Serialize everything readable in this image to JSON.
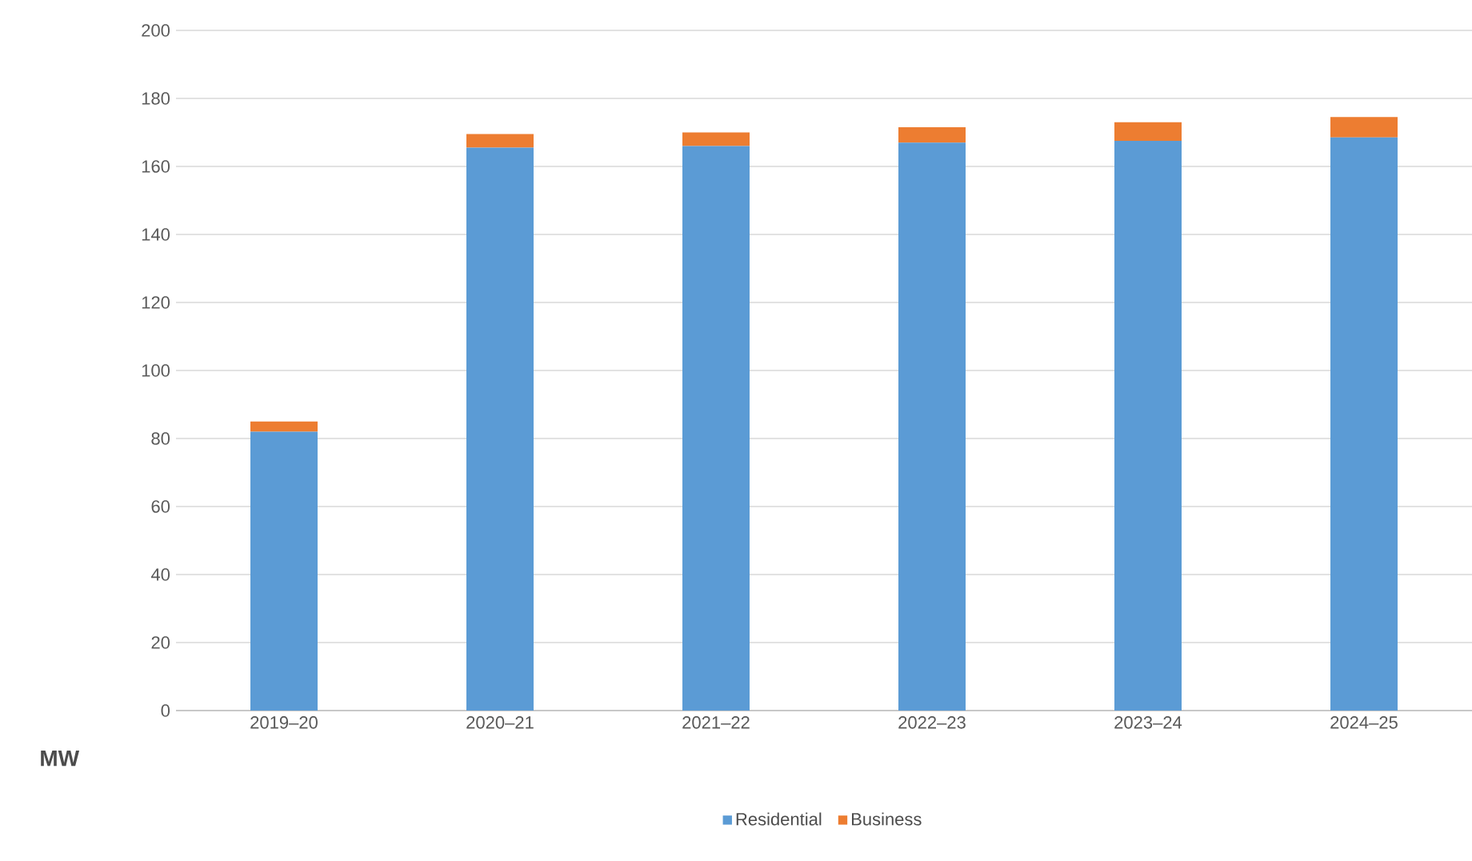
{
  "chart_data": {
    "type": "bar",
    "stacked": true,
    "ylabel": "MW",
    "categories": [
      "2019–20",
      "2020–21",
      "2021–22",
      "2022–23",
      "2023–24",
      "2024–25"
    ],
    "series": [
      {
        "name": "Residential",
        "color": "#5b9bd5",
        "values": [
          82,
          165.5,
          166,
          167,
          167.5,
          168.5
        ]
      },
      {
        "name": "Business",
        "color": "#ed7d31",
        "values": [
          3,
          4,
          4,
          4.5,
          5.5,
          6
        ]
      }
    ],
    "ylim": [
      0,
      200
    ],
    "yticks": [
      0,
      20,
      40,
      60,
      80,
      100,
      120,
      140,
      160,
      180,
      200
    ],
    "grid": "y",
    "legend": "bottom"
  }
}
